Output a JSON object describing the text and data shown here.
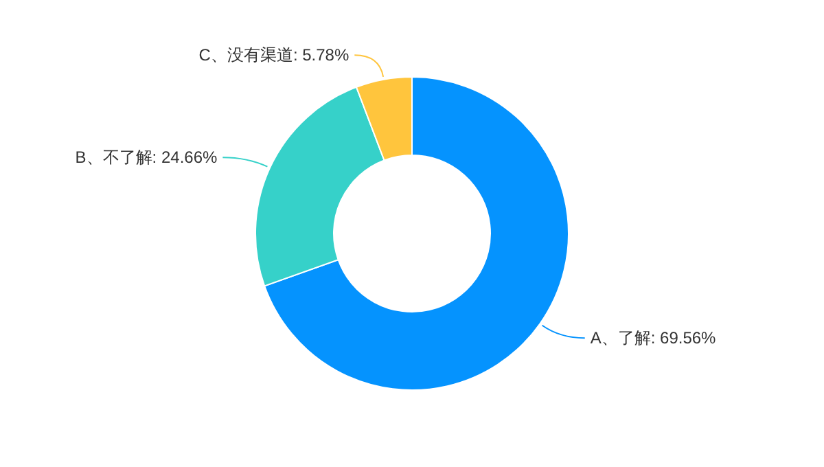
{
  "chart_data": {
    "type": "donut",
    "categories": [
      "A、了解",
      "B、不了解",
      "C、没有渠道"
    ],
    "values": [
      69.56,
      24.66,
      5.78
    ],
    "value_labels": [
      ": 69.56%",
      ": 24.66%",
      ": 5.78%"
    ],
    "colors": [
      "#0593fe",
      "#36d1c9",
      "#ffc53d"
    ],
    "legend": false
  }
}
